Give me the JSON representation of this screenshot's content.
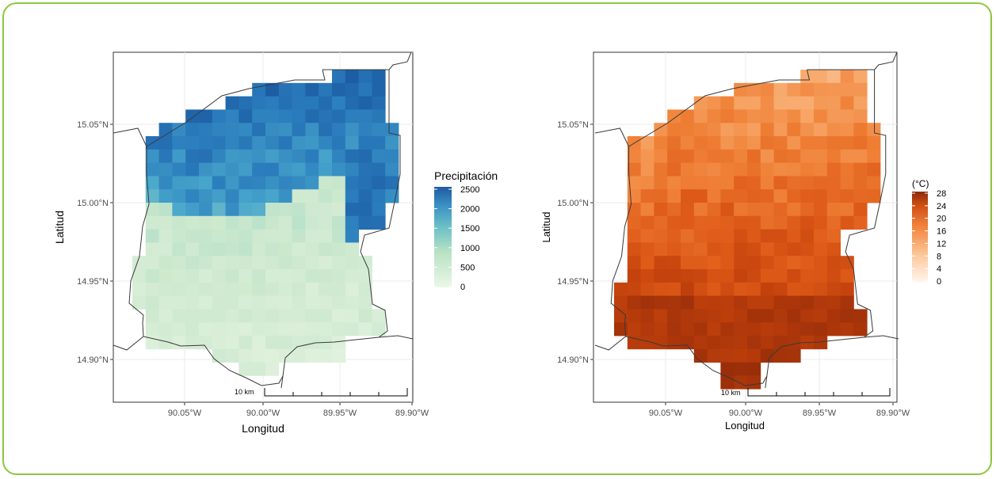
{
  "panels": [
    {
      "id": "precip",
      "xlabel": "Longitud",
      "ylabel": "Latitud",
      "x_ticks": [
        "90.05°W",
        "90.00°W",
        "89.95°W",
        "89.90°W"
      ],
      "y_ticks": [
        "15.05°N",
        "15.00°N",
        "14.95°N",
        "14.90°N"
      ],
      "legend_title": "Precipitación",
      "legend_ticks": [
        "2500",
        "2000",
        "1500",
        "1000",
        "500",
        "0"
      ],
      "scale_bar": "10 km",
      "colors": {
        "low": "#e2f2dc",
        "mid": "#8fcfbf",
        "high": "#1f62a6"
      }
    },
    {
      "id": "temp",
      "xlabel": "Longitud",
      "ylabel": "Latitud",
      "x_ticks": [
        "90.05°W",
        "90.00°W",
        "89.95°W",
        "89.90°W"
      ],
      "y_ticks": [
        "15.05°N",
        "15.00°N",
        "14.95°N",
        "14.90°N"
      ],
      "legend_title": "(°C)",
      "legend_ticks": [
        "28",
        "24",
        "20",
        "16",
        "12",
        "8",
        "4",
        "0"
      ],
      "scale_bar": "10 km",
      "colors": {
        "low": "#fdf0e4",
        "mid": "#f08a42",
        "high": "#8e2a0a"
      }
    }
  ],
  "chart_data": [
    {
      "type": "heatmap",
      "title": "",
      "xlabel": "Longitud",
      "ylabel": "Latitud",
      "xlim": [
        -90.095,
        -89.895
      ],
      "ylim": [
        14.88,
        15.095
      ],
      "legend_title": "Precipitación",
      "color_range": [
        0,
        2500
      ],
      "pattern": "high precipitation (≈2000–2500) in the northern part, decreasing to ≈600–1000 in the south"
    },
    {
      "type": "heatmap",
      "title": "",
      "xlabel": "Longitud",
      "ylabel": "Latitud",
      "xlim": [
        -90.095,
        -89.895
      ],
      "ylim": [
        14.88,
        15.095
      ],
      "legend_title": "(°C)",
      "color_range": [
        0,
        28
      ],
      "pattern": "cooler (≈18–20 °C) in the north, warmer (≈26–28 °C) in the south"
    }
  ]
}
